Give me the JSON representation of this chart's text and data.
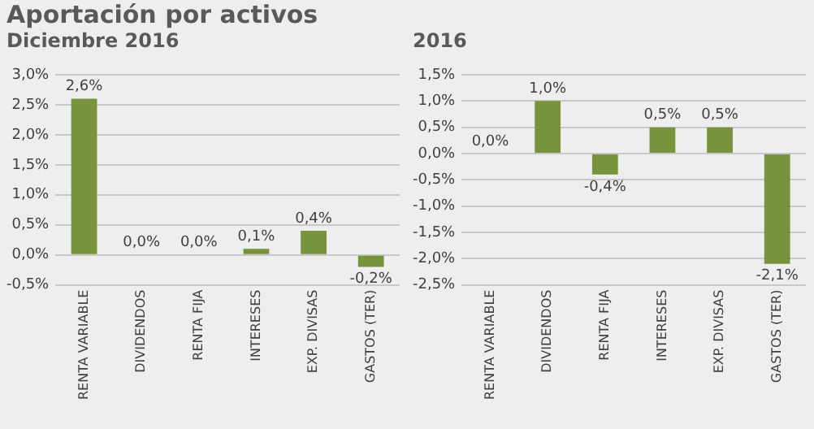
{
  "chart_data": [
    {
      "type": "bar",
      "title": "Aportación por activos",
      "subtitle": "Diciembre 2016",
      "categories": [
        "RENTA VARIABLE",
        "DIVIDENDOS",
        "RENTA FIJA",
        "INTERESES",
        "EXP. DIVISAS",
        "GASTOS (TER)"
      ],
      "values": [
        2.6,
        0.0,
        0.0,
        0.1,
        0.4,
        -0.2
      ],
      "value_labels": [
        "2,6%",
        "0,0%",
        "0,0%",
        "0,1%",
        "0,4%",
        "-0,2%"
      ],
      "color": "#77933c",
      "ylim": [
        -0.5,
        3.0
      ],
      "yticks": [
        {
          "value": -0.5,
          "label": "-0,5%"
        },
        {
          "value": 0,
          "label": "0,0%"
        },
        {
          "value": 0.5,
          "label": "0,5%"
        },
        {
          "value": 1,
          "label": "1,0%"
        },
        {
          "value": 1.5,
          "label": "1,5%"
        },
        {
          "value": 2,
          "label": "2,0%"
        },
        {
          "value": 2.5,
          "label": "2,5%"
        },
        {
          "value": 3,
          "label": "3,0%"
        }
      ],
      "grid": "y"
    },
    {
      "type": "bar",
      "title": "2016",
      "categories": [
        "RENTA VARIABLE",
        "DIVIDENDOS",
        "RENTA FIJA",
        "INTERESES",
        "EXP. DIVISAS",
        "GASTOS (TER)"
      ],
      "values": [
        0.0,
        1.0,
        -0.4,
        0.5,
        0.5,
        -2.1
      ],
      "value_labels": [
        "0,0%",
        "1,0%",
        "-0,4%",
        "0,5%",
        "0,5%",
        "-2,1%"
      ],
      "color": "#77933c",
      "ylim": [
        -2.5,
        1.5
      ],
      "yticks": [
        {
          "value": -2.5,
          "label": "-2,5%"
        },
        {
          "value": -2,
          "label": "-2,0%"
        },
        {
          "value": -1.5,
          "label": "-1,5%"
        },
        {
          "value": -1,
          "label": "-1,0%"
        },
        {
          "value": -0.5,
          "label": "-0,5%"
        },
        {
          "value": 0,
          "label": "0,0%"
        },
        {
          "value": 0.5,
          "label": "0,5%"
        },
        {
          "value": 1,
          "label": "1,0%"
        },
        {
          "value": 1.5,
          "label": "1,5%"
        }
      ],
      "grid": "y"
    }
  ]
}
